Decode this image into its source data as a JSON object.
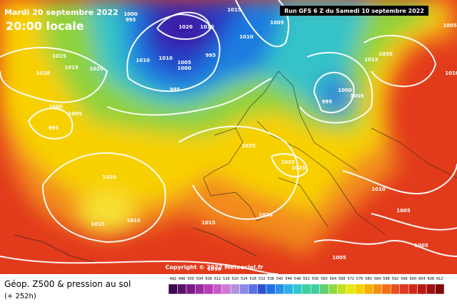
{
  "header": {
    "date": "Mardi 20 septembre 2022",
    "time": "20:00 locale",
    "run": "Run GFS 6 Z du Samedi 10 septembre 2022"
  },
  "footer": {
    "title": "Géop. Z500 & pression au sol",
    "lead": "(+ 252h)",
    "copyright": "Copyright © 2022 Meteociel.fr"
  },
  "legend": {
    "ticks": [
      "492",
      "496",
      "500",
      "504",
      "508",
      "512",
      "516",
      "520",
      "524",
      "528",
      "532",
      "536",
      "540",
      "544",
      "548",
      "552",
      "556",
      "560",
      "564",
      "568",
      "572",
      "576",
      "580",
      "584",
      "588",
      "592",
      "596",
      "600",
      "604",
      "608",
      "612"
    ]
  },
  "isobar_labels": [
    "1000",
    "995",
    "1015",
    "1005",
    "1020",
    "1010",
    "995",
    "1010",
    "1010",
    "1005",
    "1000",
    "995",
    "1015",
    "1015",
    "1020",
    "1010",
    "1000",
    "1005",
    "995",
    "1010",
    "1020",
    "1015",
    "1000",
    "1005",
    "995",
    "1005",
    "1010",
    "1025",
    "1025",
    "1025",
    "1020",
    "1015",
    "1010",
    "1010",
    "1005",
    "1020",
    "1015",
    "1005",
    "1005",
    "1010",
    "1015"
  ]
}
